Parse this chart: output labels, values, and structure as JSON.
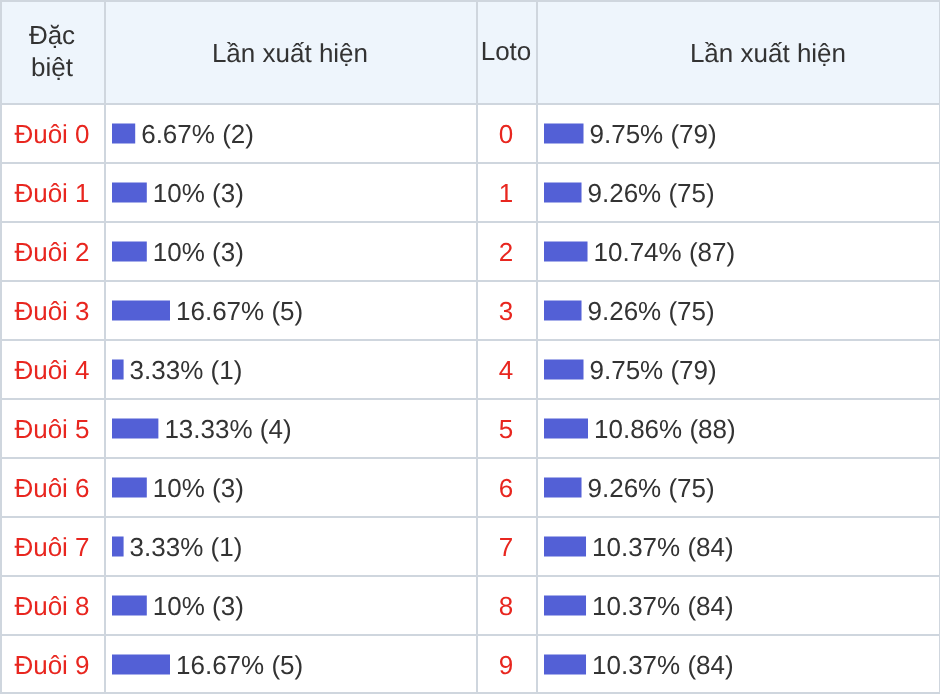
{
  "chart_data": [
    {
      "type": "bar",
      "orientation": "horizontal",
      "ylabel": "Đặc biệt",
      "xlabel": "Lần xuất hiện",
      "categories": [
        "Đuôi 0",
        "Đuôi 1",
        "Đuôi 2",
        "Đuôi 3",
        "Đuôi 4",
        "Đuôi 5",
        "Đuôi 6",
        "Đuôi 7",
        "Đuôi 8",
        "Đuôi 9"
      ],
      "values": [
        6.67,
        10,
        10,
        16.67,
        3.33,
        13.33,
        10,
        3.33,
        10,
        16.67
      ],
      "color": "#5360d6",
      "value_labels": [
        "6.67% (2)",
        "10% (3)",
        "10% (3)",
        "16.67% (5)",
        "3.33% (1)",
        "13.33% (4)",
        "10% (3)",
        "3.33% (1)",
        "10% (3)",
        "16.67% (5)"
      ]
    },
    {
      "type": "bar",
      "orientation": "horizontal",
      "ylabel": "Loto",
      "xlabel": "Lần xuất hiện",
      "categories": [
        "0",
        "1",
        "2",
        "3",
        "4",
        "5",
        "6",
        "7",
        "8",
        "9"
      ],
      "values": [
        9.75,
        9.26,
        10.74,
        9.26,
        9.75,
        10.86,
        9.26,
        10.37,
        10.37,
        10.37
      ],
      "color": "#5360d6",
      "value_labels": [
        "9.75% (79)",
        "9.26% (75)",
        "10.74% (87)",
        "9.26% (75)",
        "9.75% (79)",
        "10.86% (88)",
        "9.26% (75)",
        "10.37% (84)",
        "10.37% (84)",
        "10.37% (84)"
      ]
    }
  ]
}
